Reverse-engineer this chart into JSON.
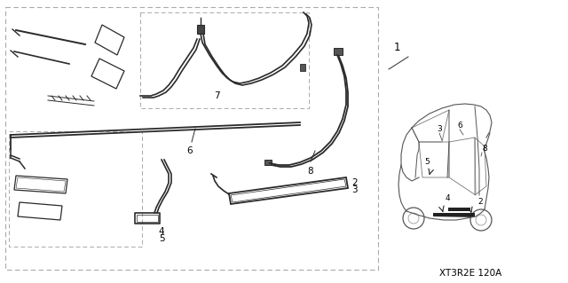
{
  "bg_color": "#ffffff",
  "lc": "#2a2a2a",
  "dc": "#888888",
  "part_code": "XT3R2E 120A",
  "figsize": [
    6.4,
    3.19
  ]
}
